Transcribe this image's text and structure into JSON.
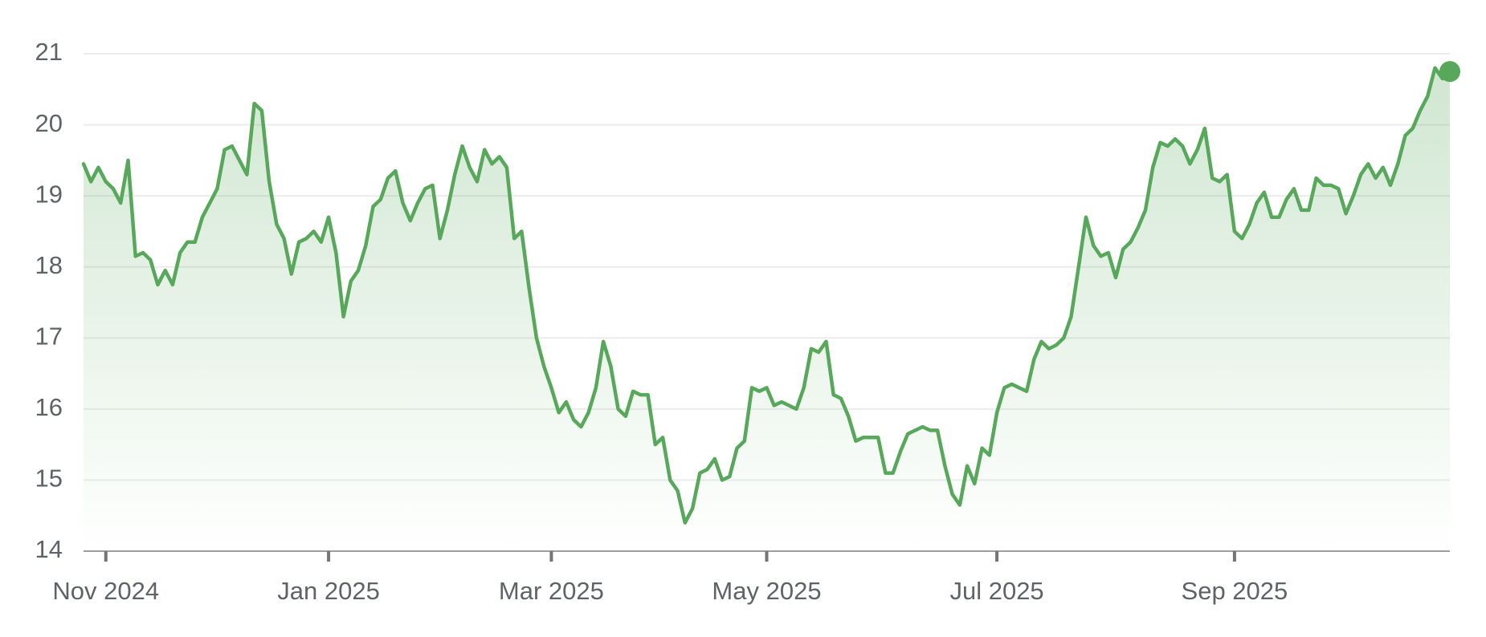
{
  "chart_data": {
    "type": "line",
    "color": "#57a85a",
    "grid": true,
    "ylim": [
      14,
      21
    ],
    "yticks": [
      14,
      15,
      16,
      17,
      18,
      19,
      20,
      21
    ],
    "categories": [
      null,
      null,
      null,
      "Nov 2024",
      null,
      null,
      null,
      null,
      null,
      null,
      null,
      null,
      null,
      null,
      null,
      null,
      null,
      null,
      null,
      null,
      null,
      null,
      null,
      null,
      null,
      null,
      null,
      null,
      null,
      null,
      null,
      null,
      null,
      "Jan 2025",
      null,
      null,
      null,
      null,
      null,
      null,
      null,
      null,
      null,
      null,
      null,
      null,
      null,
      null,
      null,
      null,
      null,
      null,
      null,
      null,
      null,
      null,
      null,
      null,
      null,
      null,
      null,
      null,
      null,
      "Mar 2025",
      null,
      null,
      null,
      null,
      null,
      null,
      null,
      null,
      null,
      null,
      null,
      null,
      null,
      null,
      null,
      null,
      null,
      null,
      null,
      null,
      null,
      null,
      null,
      null,
      null,
      null,
      null,
      null,
      "May 2025",
      null,
      null,
      null,
      null,
      null,
      null,
      null,
      null,
      null,
      null,
      null,
      null,
      null,
      null,
      null,
      null,
      null,
      null,
      null,
      null,
      null,
      null,
      null,
      null,
      null,
      null,
      null,
      null,
      null,
      null,
      "Jul 2025",
      null,
      null,
      null,
      null,
      null,
      null,
      null,
      null,
      null,
      null,
      null,
      null,
      null,
      null,
      null,
      null,
      null,
      null,
      null,
      null,
      null,
      null,
      null,
      null,
      null,
      null,
      null,
      null,
      null,
      null,
      null,
      "Sep 2025",
      null,
      null,
      null,
      null,
      null,
      null,
      null,
      null,
      null,
      null,
      null,
      null,
      null,
      null,
      null,
      null,
      null,
      null,
      null,
      null,
      null,
      null,
      null,
      null,
      null,
      null,
      null,
      null,
      null
    ],
    "values": [
      19.45,
      19.2,
      19.4,
      19.2,
      19.1,
      18.9,
      19.5,
      18.15,
      18.2,
      18.1,
      17.75,
      17.95,
      17.75,
      18.2,
      18.35,
      18.35,
      18.7,
      18.9,
      19.1,
      19.65,
      19.7,
      19.5,
      19.3,
      20.3,
      20.2,
      19.2,
      18.6,
      18.4,
      17.9,
      18.35,
      18.4,
      18.5,
      18.35,
      18.7,
      18.2,
      17.3,
      17.8,
      17.95,
      18.3,
      18.85,
      18.95,
      19.25,
      19.35,
      18.9,
      18.65,
      18.9,
      19.1,
      19.15,
      18.4,
      18.8,
      19.3,
      19.7,
      19.4,
      19.2,
      19.65,
      19.45,
      19.55,
      19.4,
      18.4,
      18.5,
      17.7,
      17.0,
      16.6,
      16.3,
      15.95,
      16.1,
      15.85,
      15.75,
      15.95,
      16.3,
      16.95,
      16.6,
      16.0,
      15.9,
      16.25,
      16.2,
      16.2,
      15.5,
      15.6,
      15.0,
      14.85,
      14.4,
      14.6,
      15.1,
      15.15,
      15.3,
      15.0,
      15.05,
      15.45,
      15.55,
      16.3,
      16.25,
      16.3,
      16.05,
      16.1,
      16.05,
      16.0,
      16.3,
      16.85,
      16.8,
      16.95,
      16.2,
      16.15,
      15.9,
      15.55,
      15.6,
      15.6,
      15.6,
      15.1,
      15.1,
      15.4,
      15.65,
      15.7,
      15.75,
      15.7,
      15.7,
      15.2,
      14.8,
      14.65,
      15.2,
      14.95,
      15.45,
      15.35,
      15.95,
      16.3,
      16.35,
      16.3,
      16.25,
      16.7,
      16.95,
      16.85,
      16.9,
      17.0,
      17.3,
      18.0,
      18.7,
      18.3,
      18.15,
      18.2,
      17.85,
      18.25,
      18.35,
      18.55,
      18.8,
      19.4,
      19.75,
      19.7,
      19.8,
      19.7,
      19.45,
      19.65,
      19.95,
      19.25,
      19.2,
      19.3,
      18.5,
      18.4,
      18.6,
      18.9,
      19.05,
      18.7,
      18.7,
      18.95,
      19.1,
      18.8,
      18.8,
      19.25,
      19.15,
      19.15,
      19.1,
      18.75,
      19.0,
      19.3,
      19.45,
      19.25,
      19.4,
      19.15,
      19.45,
      19.85,
      19.95,
      20.2,
      20.4,
      20.8,
      20.65,
      20.75
    ]
  }
}
